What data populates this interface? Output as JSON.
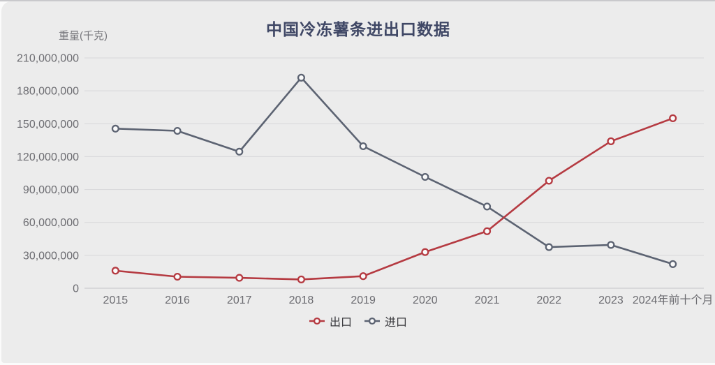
{
  "page": {
    "background": "#fbfbfb",
    "card_background": "#ececec"
  },
  "chart_data": {
    "type": "line",
    "title": "中国冷冻薯条进出口数据",
    "ylabel": "重量(千克)",
    "xlabel": "",
    "categories": [
      "2015",
      "2016",
      "2017",
      "2018",
      "2019",
      "2020",
      "2021",
      "2022",
      "2023",
      "2024年前十个月"
    ],
    "series": [
      {
        "name": "出口",
        "id": "export",
        "color": "#b53a41",
        "values": [
          16000000,
          10500000,
          9500000,
          8000000,
          11000000,
          33000000,
          52000000,
          98000000,
          134000000,
          155000000
        ]
      },
      {
        "name": "进口",
        "id": "import",
        "color": "#5c6372",
        "values": [
          145500000,
          143500000,
          124500000,
          192000000,
          129500000,
          101500000,
          74500000,
          37500000,
          39500000,
          22000000
        ]
      }
    ],
    "ylim": [
      0,
      210000000
    ],
    "y_ticks": {
      "values": [
        0,
        30000000,
        60000000,
        90000000,
        120000000,
        150000000,
        180000000,
        210000000
      ],
      "labels": [
        "0",
        "30,000,000",
        "60,000,000",
        "90,000,000",
        "120,000,000",
        "150,000,000",
        "180,000,000",
        "210,000,000"
      ]
    },
    "grid": true,
    "legend_position": "bottom"
  },
  "style": {
    "grid_color": "#d8d8da",
    "zero_line_color": "#c5c5c8",
    "axis_text_color": "#6c6c71",
    "title_color": "#3f4765",
    "marker_fill": "#fafafa"
  }
}
